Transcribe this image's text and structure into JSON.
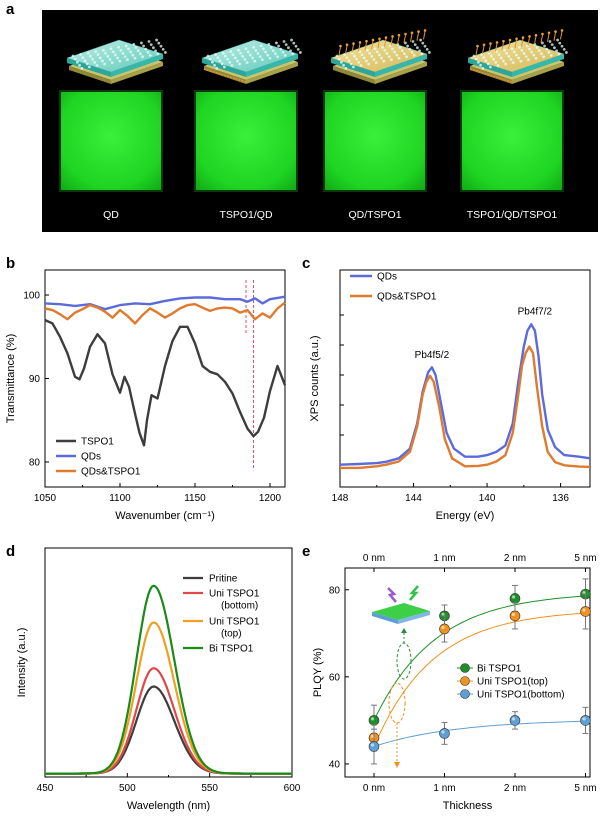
{
  "panels": {
    "a": {
      "letter": "a",
      "labels": [
        "QD",
        "TSPO1/QD",
        "QD/TSPO1",
        "TSPO1/QD/TSPO1"
      ]
    },
    "b": {
      "letter": "b"
    },
    "c": {
      "letter": "c"
    },
    "d": {
      "letter": "d"
    },
    "e": {
      "letter": "e"
    }
  },
  "chart_data": [
    {
      "id": "b",
      "type": "line",
      "xlabel": "Wavenumber (cm⁻¹)",
      "ylabel": "Transmittance (%)",
      "xlim": [
        1050,
        1210
      ],
      "ylim": [
        77,
        103
      ],
      "xticks": [
        1050,
        1100,
        1150,
        1200
      ],
      "yticks": [
        80,
        90,
        100
      ],
      "legend_position": "bottom-left",
      "series": [
        {
          "name": "TSPO1",
          "color": "#3d3d3d",
          "x": [
            1050,
            1055,
            1060,
            1065,
            1070,
            1073,
            1076,
            1080,
            1085,
            1090,
            1095,
            1100,
            1103,
            1106,
            1110,
            1113,
            1116,
            1118,
            1121,
            1125,
            1130,
            1135,
            1140,
            1145,
            1150,
            1155,
            1160,
            1165,
            1170,
            1175,
            1180,
            1185,
            1189,
            1192,
            1196,
            1200,
            1205,
            1210
          ],
          "y": [
            97,
            96.6,
            95,
            93,
            90.2,
            89.9,
            91.2,
            93.8,
            95.3,
            94.2,
            90.5,
            88.3,
            90.2,
            89,
            85.8,
            83.5,
            82,
            85,
            88,
            87.6,
            91.5,
            94.5,
            96.2,
            96.2,
            94.2,
            91.5,
            90.8,
            90.5,
            89.6,
            88.2,
            86,
            84,
            83.1,
            83.6,
            85.3,
            88.5,
            91.5,
            89.2
          ]
        },
        {
          "name": "QDs",
          "color": "#5b6bdc",
          "x": [
            1050,
            1060,
            1070,
            1080,
            1090,
            1100,
            1110,
            1120,
            1130,
            1140,
            1150,
            1160,
            1170,
            1180,
            1185,
            1190,
            1195,
            1200,
            1210
          ],
          "y": [
            99,
            98.9,
            98.7,
            98.9,
            98.3,
            98.8,
            99,
            98.9,
            99.3,
            99.6,
            99.7,
            99.7,
            99.5,
            99.5,
            99.2,
            99.6,
            99,
            99.5,
            99.8
          ]
        },
        {
          "name": "QDs&TSPO1",
          "color": "#e07a2e",
          "x": [
            1050,
            1055,
            1060,
            1065,
            1070,
            1075,
            1080,
            1085,
            1090,
            1095,
            1100,
            1105,
            1110,
            1115,
            1120,
            1125,
            1130,
            1135,
            1140,
            1145,
            1150,
            1155,
            1160,
            1165,
            1170,
            1175,
            1180,
            1185,
            1190,
            1195,
            1200,
            1205,
            1210
          ],
          "y": [
            98.4,
            98.2,
            97.7,
            97.1,
            97.9,
            98.3,
            98.8,
            98.5,
            98,
            97.3,
            98.2,
            97.5,
            96.6,
            97.6,
            98.4,
            97.9,
            97.3,
            97.8,
            98.4,
            98.8,
            98.9,
            98.5,
            98.1,
            98.4,
            98.5,
            98.4,
            97.9,
            98.2,
            97.1,
            97.8,
            97.3,
            98.4,
            99.1
          ]
        }
      ],
      "reference_lines_x": [
        1184,
        1189
      ]
    },
    {
      "id": "c",
      "type": "line",
      "xlabel": "Energy (eV)",
      "ylabel": "XPS counts (a.u.)",
      "xlim": [
        148,
        134.4
      ],
      "xticks": [
        148,
        144,
        140,
        136
      ],
      "legend_position": "top-left",
      "annotations": [
        "Pb4f5/2",
        "Pb4f7/2"
      ],
      "series": [
        {
          "name": "QDs",
          "color": "#5b6bdc",
          "x": [
            148,
            147,
            146,
            145.5,
            144.8,
            144.2,
            143.8,
            143.5,
            143.2,
            143,
            142.8,
            142.5,
            142.2,
            141.8,
            141.2,
            140.5,
            140,
            139.5,
            139,
            138.6,
            138.3,
            138,
            137.8,
            137.6,
            137.4,
            137.2,
            137,
            136.7,
            136.3,
            135.8,
            135,
            134.4
          ],
          "y": [
            1,
            1.2,
            1.5,
            1.9,
            3,
            6,
            14,
            24,
            30,
            31.5,
            29,
            20,
            11,
            6,
            3.5,
            3.5,
            4,
            5,
            7,
            14,
            27,
            38,
            43,
            45,
            43,
            35,
            23,
            12,
            6.5,
            4,
            3.5,
            3
          ]
        },
        {
          "name": "QDs&TSPO1",
          "color": "#e07a2e",
          "x": [
            148,
            147,
            146,
            145.5,
            144.8,
            144.2,
            143.8,
            143.5,
            143.3,
            143.1,
            142.9,
            142.6,
            142.3,
            141.9,
            141.2,
            140.5,
            140,
            139.5,
            139,
            138.6,
            138.3,
            138.1,
            137.9,
            137.7,
            137.5,
            137.3,
            137,
            136.7,
            136.3,
            135.8,
            135,
            134.4
          ],
          "y": [
            0,
            0,
            0.5,
            1,
            2,
            5,
            13,
            23,
            27,
            28.8,
            27,
            19,
            9,
            3,
            0.5,
            0.6,
            1,
            2,
            4,
            11,
            23,
            32,
            36,
            38,
            36,
            26,
            13,
            5,
            1.8,
            0.8,
            0.4,
            0.3
          ]
        }
      ]
    },
    {
      "id": "d",
      "type": "line",
      "xlabel": "Wavelength (nm)",
      "ylabel": "Intensity (a.u.)",
      "xlim": [
        450,
        600
      ],
      "xticks": [
        450,
        500,
        550,
        600
      ],
      "legend_position": "top-right",
      "peak_nm": 516,
      "series": [
        {
          "name": "Pritine",
          "color": "#3d3d3d",
          "peak": 38
        },
        {
          "name": "Uni TSPO1 (bottom)",
          "color": "#e04848",
          "peak": 46
        },
        {
          "name": "Uni TSPO1 (top)",
          "color": "#f0a020",
          "peak": 66
        },
        {
          "name": "Bi TSPO1",
          "color": "#1a8a1a",
          "peak": 82
        }
      ]
    },
    {
      "id": "e",
      "type": "scatter",
      "xlabel": "Thickness",
      "ylabel": "PLQY (%)",
      "categories": [
        "0 nm",
        "1 nm",
        "2 nm",
        "5 nm"
      ],
      "ylim": [
        37,
        85
      ],
      "yticks": [
        40,
        60,
        80
      ],
      "legend_position": "center-right",
      "series": [
        {
          "name": "Bi TSPO1",
          "color": "#1f8f2a",
          "values": [
            50,
            74,
            78,
            79
          ],
          "errors": [
            3.5,
            2.5,
            3,
            3.5
          ]
        },
        {
          "name": "Uni TSPO1(top)",
          "color": "#f0921e",
          "values": [
            46,
            71,
            74,
            75
          ],
          "errors": [
            3,
            3,
            3,
            4
          ]
        },
        {
          "name": "Uni TSPO1(bottom)",
          "color": "#5e9fd5",
          "values": [
            44,
            47,
            50,
            50
          ],
          "errors": [
            4,
            2.5,
            2,
            3
          ]
        }
      ]
    }
  ]
}
